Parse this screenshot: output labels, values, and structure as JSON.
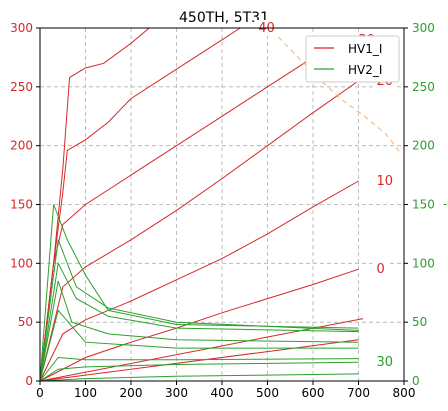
{
  "chart_data": {
    "type": "line",
    "title": "450TH, 5T31",
    "xlabel": "",
    "ylabel": "",
    "right_ylabel_fragment": "-",
    "xlim": [
      0,
      800
    ],
    "ylim": [
      0,
      300
    ],
    "xticks": [
      0,
      100,
      200,
      300,
      400,
      500,
      600,
      700,
      800
    ],
    "yticks": [
      0,
      50,
      100,
      150,
      200,
      250,
      300
    ],
    "grid": true,
    "grid_style": "dashed",
    "legend_placement": "top-right",
    "legend": [
      {
        "label": "HV1_I",
        "color": "#d62728"
      },
      {
        "label": "HV2_I",
        "color": "#2ca02c"
      }
    ],
    "colors": {
      "left_axis": "#d62728",
      "right_axis": "#2ca02c",
      "HV1": "#d62728",
      "HV2": "#2ca02c",
      "limit": "#f5b26b"
    },
    "series": [
      {
        "name": "HV1_I",
        "color": "#d62728",
        "curves": [
          {
            "label": "",
            "points": [
              [
                0,
                0
              ],
              [
                700,
                35
              ]
            ]
          },
          {
            "label": "0",
            "points": [
              [
                0,
                0
              ],
              [
                100,
                20
              ],
              [
                200,
                33
              ],
              [
                300,
                45
              ],
              [
                400,
                58
              ],
              [
                500,
                70
              ],
              [
                600,
                82
              ],
              [
                700,
                95
              ]
            ]
          },
          {
            "label": "10",
            "points": [
              [
                0,
                0
              ],
              [
                50,
                40
              ],
              [
                100,
                52
              ],
              [
                200,
                68
              ],
              [
                300,
                86
              ],
              [
                400,
                104
              ],
              [
                500,
                125
              ],
              [
                600,
                148
              ],
              [
                700,
                170
              ]
            ]
          },
          {
            "label": "20",
            "points": [
              [
                0,
                0
              ],
              [
                50,
                80
              ],
              [
                100,
                97
              ],
              [
                200,
                120
              ],
              [
                300,
                145
              ],
              [
                400,
                172
              ],
              [
                500,
                200
              ],
              [
                600,
                228
              ],
              [
                700,
                255
              ]
            ]
          },
          {
            "label": "30",
            "points": [
              [
                0,
                0
              ],
              [
                30,
                100
              ],
              [
                50,
                133
              ],
              [
                100,
                150
              ],
              [
                200,
                175
              ],
              [
                300,
                200
              ],
              [
                400,
                225
              ],
              [
                500,
                250
              ],
              [
                600,
                275
              ],
              [
                660,
                290
              ]
            ]
          },
          {
            "label": "40",
            "points": [
              [
                0,
                0
              ],
              [
                30,
                100
              ],
              [
                50,
                160
              ],
              [
                60,
                196
              ],
              [
                100,
                205
              ],
              [
                150,
                220
              ],
              [
                200,
                240
              ],
              [
                300,
                265
              ],
              [
                400,
                290
              ],
              [
                440,
                300
              ]
            ]
          },
          {
            "label": "",
            "points": [
              [
                0,
                0
              ],
              [
                30,
                100
              ],
              [
                50,
                180
              ],
              [
                65,
                258
              ],
              [
                100,
                266
              ],
              [
                140,
                270
              ],
              [
                200,
                287
              ],
              [
                240,
                300
              ]
            ]
          },
          {
            "label": "",
            "points": [
              [
                0,
                0
              ],
              [
                710,
                53
              ]
            ]
          }
        ]
      },
      {
        "name": "HV2_I",
        "color": "#2ca02c",
        "curves": [
          {
            "label": "",
            "points": [
              [
                0,
                0
              ],
              [
                100,
                2
              ],
              [
                300,
                4
              ],
              [
                500,
                5
              ],
              [
                700,
                6
              ]
            ]
          },
          {
            "label": "30",
            "points": [
              [
                0,
                0
              ],
              [
                40,
                10
              ],
              [
                100,
                12
              ],
              [
                300,
                14
              ],
              [
                500,
                15
              ],
              [
                700,
                16
              ]
            ]
          },
          {
            "label": "",
            "points": [
              [
                0,
                0
              ],
              [
                40,
                20
              ],
              [
                100,
                18
              ],
              [
                300,
                18
              ],
              [
                700,
                19
              ]
            ]
          },
          {
            "label": "",
            "points": [
              [
                0,
                0
              ],
              [
                40,
                60
              ],
              [
                100,
                33
              ],
              [
                300,
                28
              ],
              [
                700,
                28
              ]
            ]
          },
          {
            "label": "",
            "points": [
              [
                0,
                0
              ],
              [
                40,
                85
              ],
              [
                70,
                50
              ],
              [
                150,
                40
              ],
              [
                300,
                35
              ],
              [
                700,
                33
              ]
            ]
          },
          {
            "label": "",
            "points": [
              [
                0,
                0
              ],
              [
                40,
                100
              ],
              [
                80,
                70
              ],
              [
                150,
                55
              ],
              [
                300,
                45
              ],
              [
                700,
                42
              ]
            ]
          },
          {
            "label": "",
            "points": [
              [
                0,
                0
              ],
              [
                40,
                120
              ],
              [
                80,
                80
              ],
              [
                150,
                62
              ],
              [
                300,
                50
              ],
              [
                700,
                43
              ]
            ]
          },
          {
            "label": "",
            "points": [
              [
                0,
                0
              ],
              [
                30,
                150
              ],
              [
                60,
                120
              ],
              [
                100,
                90
              ],
              [
                150,
                60
              ],
              [
                300,
                48
              ],
              [
                700,
                45
              ]
            ]
          }
        ]
      }
    ],
    "limit_curve": {
      "color": "#f5b26b",
      "style": "dashed",
      "points": [
        [
          510,
          298
        ],
        [
          560,
          278
        ],
        [
          610,
          258
        ],
        [
          660,
          240
        ],
        [
          710,
          226
        ],
        [
          760,
          210
        ],
        [
          790,
          195
        ]
      ]
    }
  }
}
